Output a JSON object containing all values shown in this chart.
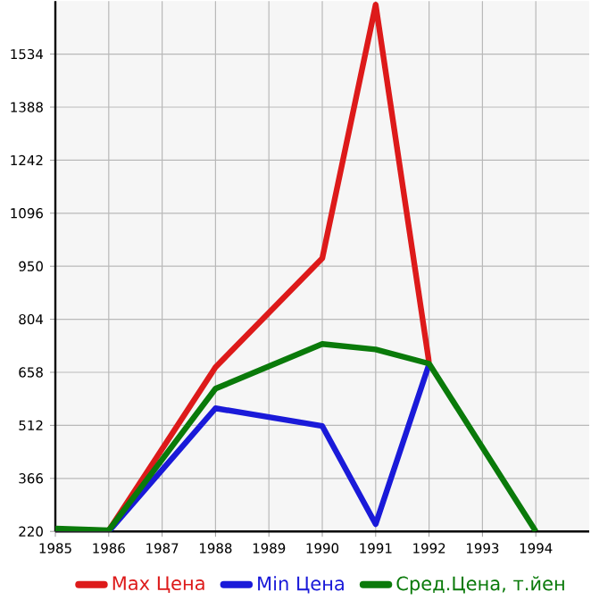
{
  "chart_data": {
    "type": "line",
    "x": [
      1985,
      1986,
      1988,
      1990,
      1991,
      1992,
      1993,
      1994
    ],
    "xlim": [
      1985,
      1995
    ],
    "xticks": [
      1985,
      1986,
      1987,
      1988,
      1989,
      1990,
      1991,
      1992,
      1993,
      1994
    ],
    "ylim": [
      220,
      1680
    ],
    "yticks": [
      220,
      366,
      512,
      658,
      804,
      950,
      1096,
      1242,
      1388,
      1534
    ],
    "grid": true,
    "legend": "bottom",
    "line_style": "solid",
    "marker": "none",
    "series": [
      {
        "name": "Max Цена",
        "color": "#dd1a1a",
        "values": [
          225,
          222,
          672,
          972,
          1670,
          685,
          null,
          null
        ]
      },
      {
        "name": "Min Цена",
        "color": "#1a1ad9",
        "values": [
          225,
          220,
          559,
          510,
          240,
          680,
          null,
          null
        ]
      },
      {
        "name": "Сред.Цена, т.йен",
        "color": "#0a7a0a",
        "values": [
          228,
          223,
          613,
          736,
          721,
          682,
          451,
          220
        ]
      }
    ]
  }
}
